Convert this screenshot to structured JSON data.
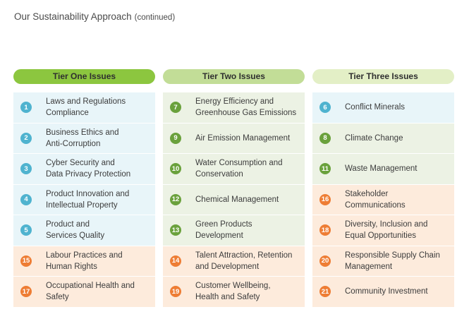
{
  "page": {
    "title": "Our Sustainability Approach",
    "continued": "(continued)"
  },
  "colors": {
    "tier_one_header": "#8cc63f",
    "tier_two_header": "#c2dd97",
    "tier_three_header": "#e3efc6",
    "blue_badge": "#4fb3cf",
    "green_badge": "#6aa13c",
    "orange_badge": "#ee7d34"
  },
  "tiers": [
    {
      "title": "Tier One Issues",
      "issues": [
        {
          "num": "1",
          "label": "Laws and Regulations\nCompliance",
          "color": "blue"
        },
        {
          "num": "2",
          "label": "Business Ethics and\nAnti-Corruption",
          "color": "blue"
        },
        {
          "num": "3",
          "label": "Cyber Security and\nData Privacy Protection",
          "color": "blue"
        },
        {
          "num": "4",
          "label": "Product Innovation and\nIntellectual Property",
          "color": "blue"
        },
        {
          "num": "5",
          "label": "Product and\nServices Quality",
          "color": "blue"
        },
        {
          "num": "15",
          "label": "Labour Practices and\nHuman Rights",
          "color": "orange"
        },
        {
          "num": "17",
          "label": "Occupational Health and\nSafety",
          "color": "orange"
        }
      ]
    },
    {
      "title": "Tier Two Issues",
      "issues": [
        {
          "num": "7",
          "label": "Energy Efficiency and\nGreenhouse Gas Emissions",
          "color": "green"
        },
        {
          "num": "9",
          "label": "Air Emission Management",
          "color": "green"
        },
        {
          "num": "10",
          "label": "Water Consumption and\nConservation",
          "color": "green"
        },
        {
          "num": "12",
          "label": "Chemical Management",
          "color": "green"
        },
        {
          "num": "13",
          "label": "Green Products\nDevelopment",
          "color": "green"
        },
        {
          "num": "14",
          "label": "Talent Attraction, Retention\nand Development",
          "color": "orange"
        },
        {
          "num": "19",
          "label": "Customer Wellbeing,\nHealth and Safety",
          "color": "orange"
        }
      ]
    },
    {
      "title": "Tier Three Issues",
      "issues": [
        {
          "num": "6",
          "label": "Conflict Minerals",
          "color": "blue"
        },
        {
          "num": "8",
          "label": "Climate Change",
          "color": "green"
        },
        {
          "num": "11",
          "label": "Waste Management",
          "color": "green"
        },
        {
          "num": "16",
          "label": "Stakeholder\nCommunications",
          "color": "orange"
        },
        {
          "num": "18",
          "label": "Diversity, Inclusion and\nEqual Opportunities",
          "color": "orange"
        },
        {
          "num": "20",
          "label": "Responsible Supply Chain\nManagement",
          "color": "orange"
        },
        {
          "num": "21",
          "label": "Community Investment",
          "color": "orange"
        }
      ]
    }
  ]
}
